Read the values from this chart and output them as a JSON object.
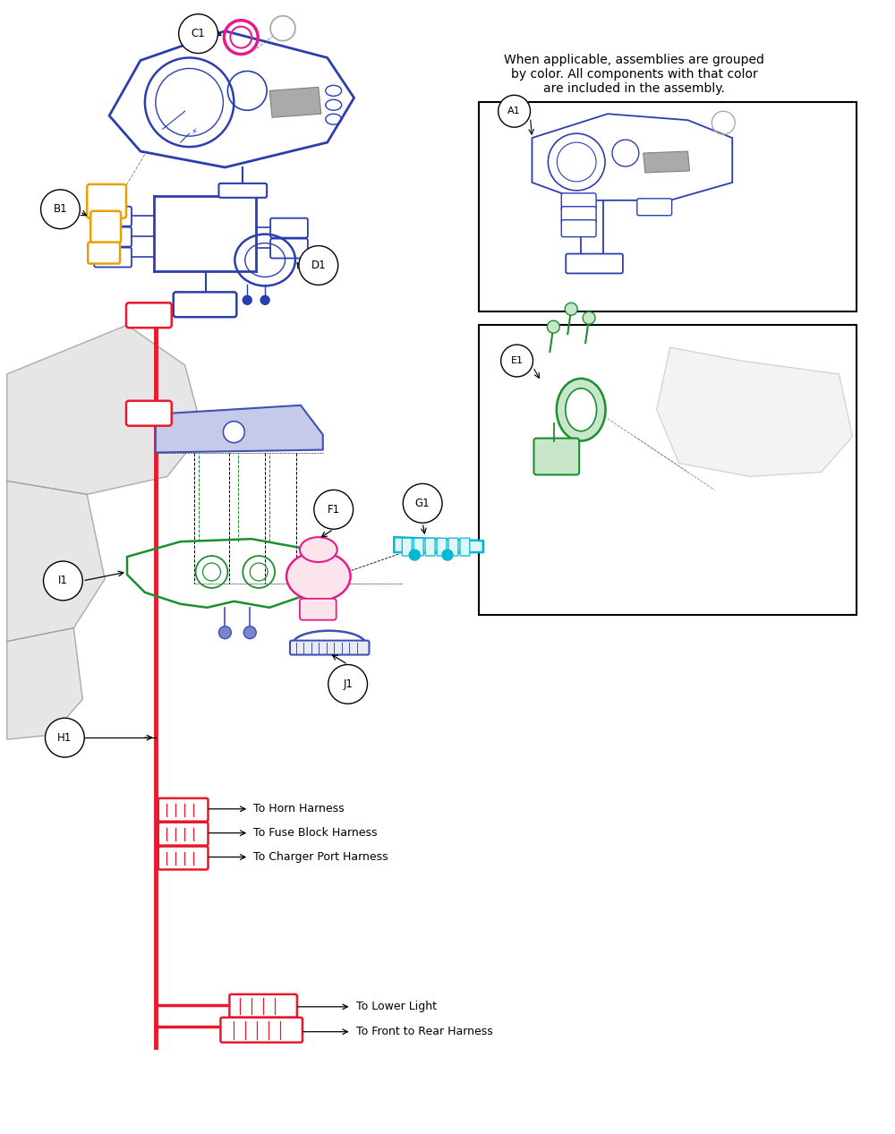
{
  "bg_color": "#ffffff",
  "text_note": "When applicable, assemblies are grouped\nby color. All components with that color\nare included in the assembly.",
  "colors": {
    "blue": "#2b3eb0",
    "red": "#e8192c",
    "green": "#1a8f2e",
    "magenta": "#e8198c",
    "orange": "#e8a000",
    "cyan": "#00b8d4",
    "indigo": "#3f51b5",
    "gray": "#888888",
    "light_gray": "#cccccc",
    "dark_gray": "#555555"
  },
  "fig_w": 10.0,
  "fig_h": 12.67,
  "dpi": 100,
  "xlim": [
    0,
    10.0
  ],
  "ylim": [
    0,
    12.67
  ]
}
